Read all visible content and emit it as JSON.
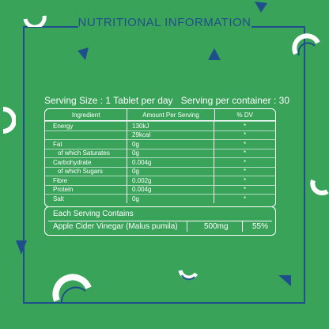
{
  "title": "NUTRITIONAL INFORMATION",
  "serving_size": "Serving Size : 1 Tablet per day",
  "serving_per_container": "Serving per container : 30",
  "table": {
    "headers": [
      "Ingredient",
      "Amount Per Serving",
      "% DV"
    ],
    "rows": [
      {
        "name": "Energy",
        "amount": "130kJ",
        "dv": "*"
      },
      {
        "name": "",
        "amount": "29kcal",
        "dv": "*"
      },
      {
        "name": "Fat",
        "amount": "0g",
        "dv": "*"
      },
      {
        "name": "of which Saturates",
        "amount": "0g",
        "dv": "*"
      },
      {
        "name": "Carbohydrate",
        "amount": "0.004g",
        "dv": "*"
      },
      {
        "name": "of which Sugars",
        "amount": "0g",
        "dv": "*"
      },
      {
        "name": "Fibre",
        "amount": "0.002g",
        "dv": "*"
      },
      {
        "name": "Protein",
        "amount": "0.004g",
        "dv": "*"
      },
      {
        "name": "Salt",
        "amount": "0g",
        "dv": "*"
      }
    ]
  },
  "each_serving": {
    "title": "Each Serving Contains",
    "name": "Apple Cider Vinegar (Malus pumila)",
    "amount": "500mg",
    "percent": "55%"
  },
  "colors": {
    "background": "#3aa35a",
    "frame": "#1f4f8a",
    "text": "#ffffff"
  }
}
